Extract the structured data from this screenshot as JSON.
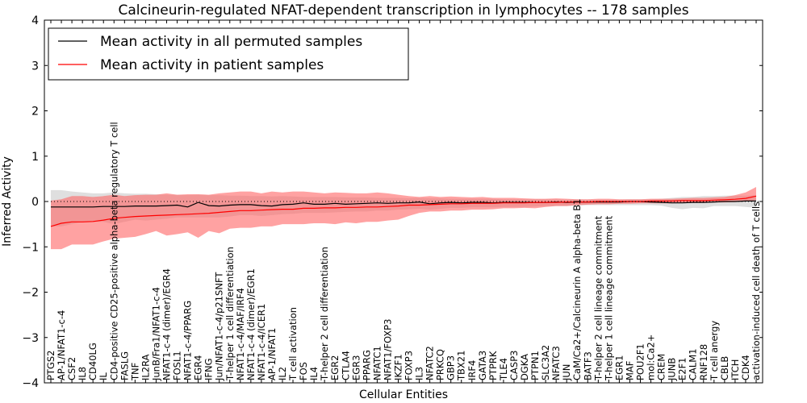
{
  "chart_data": {
    "type": "line",
    "title": "Calcineurin-regulated NFAT-dependent transcription in lymphocytes -- 178 samples",
    "xlabel": "Cellular Entities",
    "ylabel": "Inferred Activity",
    "ylim": [
      -4,
      4
    ],
    "yticks": [
      "−4",
      "−3",
      "−2",
      "−1",
      "0",
      "1",
      "2",
      "3",
      "4"
    ],
    "legend_position": "top-left",
    "colors": {
      "permuted_line": "#000000",
      "permuted_band": "#bfbfbf",
      "patient_line": "#ff0000",
      "patient_band": "#ff6464",
      "zero_line": "#000000"
    },
    "categories": [
      "PTGS2",
      "AP-1/NFAT1-c-4",
      "CSF2",
      "IL8",
      "CD40LG",
      "IL",
      "CD4-positive CD25-positive alpha-beta regulatory T cell",
      "FASLG",
      "TNF",
      "IL2RA",
      "JunB/Fra1/NFAT1-c-4",
      "NFAT1-c-4 (dimer)/EGR4",
      "FOSL1",
      "NFAT1-c-4/PPARG",
      "EGR4",
      "IFNG",
      "Jun/NFAT1-c-4/p21SNFT",
      "T-helper 1 cell differentiation",
      "NFAT1-c-4/MAF/IRF4",
      "NFAT1-c-4 (dimer)/EGR1",
      "NFAT1-c-4/ICER1",
      "AP-1/NFAT1",
      "IL2",
      "T cell activation",
      "FOS",
      "IL4",
      "T-helper 2 cell differentiation",
      "EGR2",
      "CTLA4",
      "EGR3",
      "PPARG",
      "NFATC1",
      "NFAT1/FOXP3",
      "IKZF1",
      "FOXP3",
      "IL3",
      "NFATC2",
      "PRKCQ",
      "GBP3",
      "TBX21",
      "IRF4",
      "GATA3",
      "PTPRK",
      "TLE4",
      "CASP3",
      "DGKA",
      "PTPN1",
      "SLC3A2",
      "NFATC3",
      "JUN",
      "CaM/Ca2+/Calcineurin A alpha-beta B1",
      "BATF3",
      "T-helper 2 cell lineage commitment",
      "T-helper 1 cell lineage commitment",
      "EGR1",
      "MAF",
      "POU2F1",
      "mol:Ca2+",
      "CREM",
      "JUNB",
      "E2F1",
      "CALM1",
      "RNF128",
      "T cell anergy",
      "CBLB",
      "ITCH",
      "CDK4",
      "activation-induced cell death of T cells"
    ],
    "series": [
      {
        "name": "Mean activity in all permuted samples",
        "values": [
          -0.12,
          -0.12,
          -0.12,
          -0.12,
          -0.12,
          -0.11,
          -0.11,
          -0.11,
          -0.1,
          -0.1,
          -0.1,
          -0.09,
          -0.08,
          -0.12,
          -0.02,
          -0.09,
          -0.1,
          -0.08,
          -0.07,
          -0.07,
          -0.09,
          -0.1,
          -0.07,
          -0.06,
          -0.03,
          -0.06,
          -0.06,
          -0.04,
          -0.06,
          -0.05,
          -0.04,
          -0.03,
          -0.04,
          -0.03,
          -0.03,
          -0.01,
          -0.05,
          -0.03,
          -0.02,
          -0.03,
          -0.02,
          -0.02,
          -0.03,
          -0.02,
          -0.02,
          -0.02,
          -0.02,
          -0.02,
          -0.01,
          -0.02,
          -0.01,
          -0.01,
          -0.01,
          -0.01,
          -0.01,
          0.0,
          0.0,
          -0.01,
          -0.02,
          -0.03,
          -0.03,
          -0.02,
          -0.02,
          -0.01,
          0.0,
          0.0,
          0.01,
          0.01
        ],
        "lower": [
          -0.55,
          -0.55,
          -0.5,
          -0.45,
          -0.45,
          -0.45,
          -0.5,
          -0.45,
          -0.4,
          -0.42,
          -0.4,
          -0.38,
          -0.35,
          -0.35,
          -0.35,
          -0.35,
          -0.35,
          -0.33,
          -0.3,
          -0.3,
          -0.32,
          -0.3,
          -0.28,
          -0.27,
          -0.25,
          -0.25,
          -0.25,
          -0.24,
          -0.23,
          -0.22,
          -0.22,
          -0.2,
          -0.2,
          -0.18,
          -0.17,
          -0.16,
          -0.18,
          -0.16,
          -0.14,
          -0.14,
          -0.13,
          -0.13,
          -0.13,
          -0.12,
          -0.12,
          -0.12,
          -0.11,
          -0.1,
          -0.1,
          -0.1,
          -0.09,
          -0.08,
          -0.08,
          -0.08,
          -0.08,
          -0.08,
          -0.08,
          -0.08,
          -0.09,
          -0.14,
          -0.17,
          -0.14,
          -0.15,
          -0.1,
          -0.1,
          -0.1,
          -0.12,
          -0.14
        ],
        "upper": [
          0.25,
          0.25,
          0.22,
          0.2,
          0.18,
          0.18,
          0.2,
          0.18,
          0.17,
          0.17,
          0.16,
          0.15,
          0.15,
          0.14,
          0.15,
          0.14,
          0.14,
          0.13,
          0.13,
          0.12,
          0.12,
          0.11,
          0.12,
          0.11,
          0.1,
          0.1,
          0.1,
          0.1,
          0.09,
          0.09,
          0.09,
          0.08,
          0.08,
          0.08,
          0.07,
          0.08,
          0.07,
          0.07,
          0.06,
          0.06,
          0.06,
          0.06,
          0.06,
          0.05,
          0.05,
          0.05,
          0.05,
          0.05,
          0.05,
          0.04,
          0.05,
          0.04,
          0.04,
          0.04,
          0.04,
          0.05,
          0.05,
          0.05,
          0.06,
          0.08,
          0.1,
          0.1,
          0.12,
          0.12,
          0.13,
          0.13,
          0.13,
          0.14
        ]
      },
      {
        "name": "Mean activity in patient samples",
        "values": [
          -0.55,
          -0.48,
          -0.45,
          -0.45,
          -0.44,
          -0.41,
          -0.37,
          -0.35,
          -0.33,
          -0.32,
          -0.31,
          -0.3,
          -0.29,
          -0.28,
          -0.27,
          -0.26,
          -0.24,
          -0.22,
          -0.2,
          -0.2,
          -0.19,
          -0.18,
          -0.17,
          -0.17,
          -0.15,
          -0.15,
          -0.14,
          -0.14,
          -0.13,
          -0.13,
          -0.12,
          -0.12,
          -0.11,
          -0.1,
          -0.08,
          -0.08,
          -0.07,
          -0.06,
          -0.05,
          -0.05,
          -0.04,
          -0.04,
          -0.04,
          -0.03,
          -0.03,
          -0.03,
          -0.02,
          -0.02,
          -0.02,
          -0.01,
          -0.01,
          -0.01,
          0.0,
          0.0,
          0.0,
          0.0,
          0.0,
          0.01,
          0.01,
          0.01,
          0.02,
          0.02,
          0.02,
          0.03,
          0.04,
          0.05,
          0.07,
          0.12
        ],
        "lower": [
          -1.05,
          -1.05,
          -0.95,
          -0.95,
          -0.95,
          -0.88,
          -0.82,
          -0.8,
          -0.78,
          -0.72,
          -0.65,
          -0.75,
          -0.72,
          -0.68,
          -0.8,
          -0.65,
          -0.7,
          -0.6,
          -0.58,
          -0.58,
          -0.55,
          -0.55,
          -0.5,
          -0.5,
          -0.5,
          -0.48,
          -0.48,
          -0.5,
          -0.46,
          -0.48,
          -0.45,
          -0.45,
          -0.42,
          -0.4,
          -0.32,
          -0.25,
          -0.22,
          -0.22,
          -0.2,
          -0.2,
          -0.18,
          -0.18,
          -0.17,
          -0.15,
          -0.15,
          -0.14,
          -0.15,
          -0.12,
          -0.1,
          -0.1,
          -0.08,
          -0.07,
          -0.06,
          -0.06,
          -0.05,
          -0.05,
          -0.04,
          -0.04,
          -0.04,
          -0.04,
          -0.03,
          -0.03,
          -0.03,
          -0.02,
          -0.02,
          -0.01,
          0.0,
          0.03
        ],
        "upper": [
          0.02,
          0.05,
          0.12,
          0.12,
          0.1,
          0.12,
          0.15,
          0.12,
          0.14,
          0.15,
          0.15,
          0.18,
          0.15,
          0.16,
          0.16,
          0.15,
          0.18,
          0.2,
          0.22,
          0.22,
          0.18,
          0.22,
          0.2,
          0.22,
          0.22,
          0.2,
          0.18,
          0.2,
          0.19,
          0.18,
          0.18,
          0.2,
          0.18,
          0.15,
          0.12,
          0.1,
          0.12,
          0.1,
          0.11,
          0.1,
          0.09,
          0.1,
          0.08,
          0.08,
          0.08,
          0.07,
          0.06,
          0.06,
          0.07,
          0.06,
          0.05,
          0.05,
          0.06,
          0.06,
          0.05,
          0.05,
          0.05,
          0.06,
          0.06,
          0.06,
          0.07,
          0.08,
          0.08,
          0.09,
          0.1,
          0.14,
          0.2,
          0.32
        ]
      }
    ]
  }
}
